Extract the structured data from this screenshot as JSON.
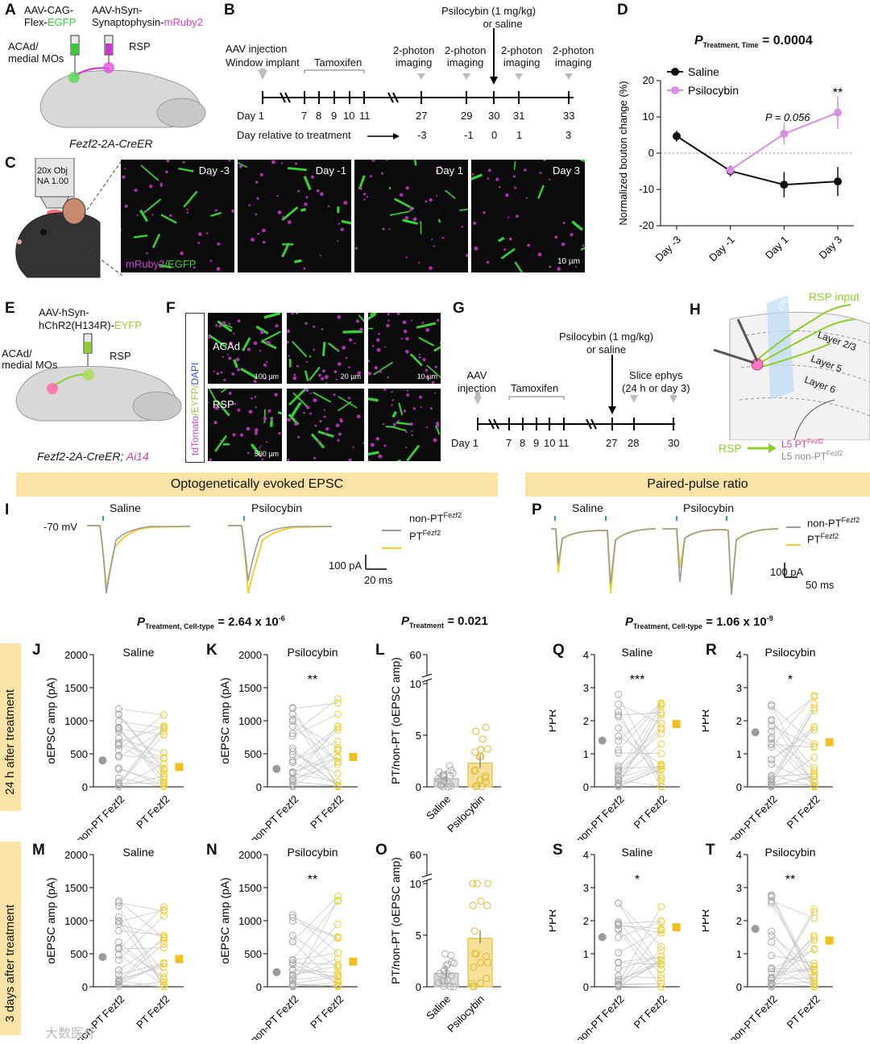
{
  "panels": {
    "A": "A",
    "B": "B",
    "C": "C",
    "D": "D",
    "E": "E",
    "F": "F",
    "G": "G",
    "H": "H",
    "I": "I",
    "J": "J",
    "K": "K",
    "L": "L",
    "M": "M",
    "N": "N",
    "O": "O",
    "P": "P",
    "Q": "Q",
    "R": "R",
    "S": "S",
    "T": "T"
  },
  "A": {
    "vec1_l1": "AAV-CAG-",
    "vec1_l2a": "Flex-",
    "vec1_l2b": "EGFP",
    "vec2_l1": "AAV-hSyn-",
    "vec2_l2a": "Synaptophysin-",
    "vec2_l2b": "mRuby2",
    "region1_l1": "ACAd/",
    "region1_l2": "medial MOs",
    "region2": "RSP",
    "mouse": "Fezf2-2A-CreER"
  },
  "B": {
    "inj_l1": "AAV injection",
    "inj_l2": "Window implant",
    "tam": "Tamoxifen",
    "p1_l1": "2-photon",
    "p1_l2": "imaging",
    "p2_l1": "2-photon",
    "p2_l2": "imaging",
    "p3_l1": "2-photon",
    "p3_l2": "imaging",
    "p4_l1": "2-photon",
    "p4_l2": "imaging",
    "drug_l1": "Psilocybin (1 mg/kg)",
    "drug_l2": "or saline",
    "day": "Day",
    "days": [
      "1",
      "7",
      "8",
      "9",
      "10",
      "11",
      "27",
      "29",
      "30",
      "31",
      "33"
    ],
    "rel_label": "Day relative to treatment",
    "rel": [
      "-3",
      "-1",
      "0",
      "1",
      "3"
    ]
  },
  "C": {
    "obj_l1": "20x Obj",
    "obj_l2": "NA 1.00",
    "tiles": [
      "Day -3",
      "Day -1",
      "Day 1",
      "Day 3"
    ],
    "legend_a": "mRuby2",
    "legend_b": "/EGFP",
    "scale": "10 µm"
  },
  "D": {
    "stat_p": "P",
    "stat_sub": "Treatment, Time",
    "stat_val": "= 0.0004",
    "legend": [
      "Saline",
      "Psilocybin"
    ],
    "ylabel": "Normalized bouton change (%)",
    "yticks": [
      "20",
      "10",
      "0",
      "-10",
      "-20"
    ],
    "xticks": [
      "Day -3",
      "Day -1",
      "Day 1",
      "Day 3"
    ],
    "annot": "P = 0.056",
    "stars": "**",
    "colors": {
      "saline": "#111111",
      "psilocybin": "#d98ee6"
    },
    "chart_data": {
      "type": "line",
      "categories": [
        "Day -3",
        "Day -1",
        "Day 1",
        "Day 3"
      ],
      "ylim": [
        -20,
        20
      ],
      "series": [
        {
          "name": "Saline",
          "values": [
            4.7,
            -4.9,
            -8.7,
            -7.8
          ],
          "err": [
            1.5,
            1.5,
            3.5,
            4.0
          ]
        },
        {
          "name": "Psilocybin",
          "values": [
            null,
            -4.6,
            5.3,
            11.2
          ],
          "err": [
            null,
            1.0,
            3.0,
            4.5
          ]
        }
      ]
    }
  },
  "E": {
    "vec_l1": "AAV-hSyn-",
    "vec_l2a": "hChR2(H134R)-",
    "vec_l2b": "EYFP",
    "region1_l1": "ACAd/",
    "region1_l2": "medial MOs",
    "region2": "RSP",
    "mouse_a": "Fezf2-2A-CreER; ",
    "mouse_b": "Ai14"
  },
  "F": {
    "side_a": "tdTomato",
    "side_b": "/EYFP/",
    "side_c": "DAPI",
    "acad": "ACAd",
    "rsp": "RSP",
    "s1": "100 µm",
    "s2": "20 µm",
    "s3": "10 µm",
    "s4": "500 µm"
  },
  "G": {
    "drug_l1": "Psilocybin (1 mg/kg)",
    "drug_l2": "or saline",
    "aav_l1": "AAV",
    "aav_l2": "injection",
    "tam": "Tamoxifen",
    "ephys_l1": "Slice ephys",
    "ephys_l2": "(24 h or day 3)",
    "day": "Day",
    "days": [
      "1",
      "7",
      "8",
      "9",
      "10",
      "11",
      "27",
      "28",
      "30"
    ]
  },
  "H": {
    "wavelength": "470 nm",
    "input": "RSP input",
    "layers": [
      "Layer 2/3",
      "Layer 5",
      "Layer 6"
    ],
    "rsp": "RSP",
    "target_a": "L5 PT",
    "target_sup": "Fezf2",
    "target_b": "L5 non-PT",
    "target_b_sup": "Fezf2"
  },
  "I": {
    "banner": "Optogenetically evoked EPSC",
    "saline": "Saline",
    "psilocybin": "Psilocybin",
    "vm": "-70 mV",
    "leg1": "non-PT",
    "leg1_sup": "Fezf2",
    "leg2": "PT",
    "leg2_sup": "Fezf2",
    "sb1": "100 pA",
    "sb2": "20 ms",
    "colors": {
      "nonpt": "#9a9a9a",
      "pt": "#f0d030"
    }
  },
  "P": {
    "banner": "Paired-pulse ratio",
    "saline": "Saline",
    "psilocybin": "Psilocybin",
    "leg1": "non-PT",
    "leg1_sup": "Fezf2",
    "leg2": "PT",
    "leg2_sup": "Fezf2",
    "sb1": "100 pA",
    "sb2": "50 ms"
  },
  "stats": {
    "s1_p": "P",
    "s1_sub": "Treatment, Cell-type",
    "s1_val": "= 2.64 x 10",
    "s1_exp": "-6",
    "s2_p": "P",
    "s2_sub": "Treatment",
    "s2_val": "= 0.021",
    "s3_p": "P",
    "s3_sub": "Treatment, Cell-type",
    "s3_val": "= 1.06 x 10",
    "s3_exp": "-9"
  },
  "rows": {
    "r1": "24 h after treatment",
    "r2": "3 days  after treatment"
  },
  "scatter": {
    "J": {
      "title": "Saline",
      "ylabel": "oEPSC amp (pA)",
      "stars": "",
      "yticks": [
        "2000",
        "1500",
        "1000",
        "500",
        "0"
      ],
      "x1": "non-PT",
      "x2": "PT",
      "sup": "Fezf2",
      "chart_data": {
        "type": "scatter",
        "ylim": [
          0,
          2000
        ],
        "categories": [
          "non-PT Fezf2",
          "PT Fezf2"
        ],
        "values": [
          400,
          300
        ]
      }
    },
    "K": {
      "title": "Psilocybin",
      "ylabel": "oEPSC amp (pA)",
      "stars": "**",
      "yticks": [
        "2000",
        "1500",
        "1000",
        "500",
        "0"
      ],
      "x1": "non-PT",
      "x2": "PT",
      "sup": "Fezf2",
      "chart_data": {
        "type": "scatter",
        "ylim": [
          0,
          2000
        ],
        "categories": [
          "non-PT Fezf2",
          "PT Fezf2"
        ],
        "values": [
          270,
          450
        ]
      }
    },
    "M": {
      "title": "Saline",
      "ylabel": "oEPSC amp (pA)",
      "stars": "",
      "yticks": [
        "2000",
        "1500",
        "1000",
        "500",
        "0"
      ],
      "x1": "non-PT",
      "x2": "PT",
      "sup": "Fezf2",
      "chart_data": {
        "type": "scatter",
        "ylim": [
          0,
          2000
        ],
        "categories": [
          "non-PT Fezf2",
          "PT Fezf2"
        ],
        "values": [
          450,
          420
        ]
      }
    },
    "N": {
      "title": "Psilocybin",
      "ylabel": "oEPSC amp (pA)",
      "stars": "**",
      "yticks": [
        "2000",
        "1500",
        "1000",
        "500",
        "0"
      ],
      "x1": "non-PT",
      "x2": "PT",
      "sup": "Fezf2",
      "chart_data": {
        "type": "scatter",
        "ylim": [
          0,
          2000
        ],
        "categories": [
          "non-PT Fezf2",
          "PT Fezf2"
        ],
        "values": [
          220,
          380
        ]
      }
    },
    "Q": {
      "title": "Saline",
      "ylabel": "PPR",
      "stars": "***",
      "yticks": [
        "4",
        "3",
        "2",
        "1",
        "0"
      ],
      "x1": "non-PT",
      "x2": "PT",
      "sup": "Fezf2",
      "chart_data": {
        "type": "scatter",
        "ylim": [
          0,
          4
        ],
        "categories": [
          "non-PT Fezf2",
          "PT Fezf2"
        ],
        "values": [
          1.4,
          1.9
        ]
      }
    },
    "R": {
      "title": "Psilocybin",
      "ylabel": "PPR",
      "stars": "*",
      "yticks": [
        "4",
        "3",
        "2",
        "1",
        "0"
      ],
      "x1": "non-PT",
      "x2": "PT",
      "sup": "Fezf2",
      "chart_data": {
        "type": "scatter",
        "ylim": [
          0,
          4
        ],
        "categories": [
          "non-PT Fezf2",
          "PT Fezf2"
        ],
        "values": [
          1.65,
          1.35
        ]
      }
    },
    "S": {
      "title": "Saline",
      "ylabel": "PPR",
      "stars": "*",
      "yticks": [
        "4",
        "3",
        "2",
        "1",
        "0"
      ],
      "x1": "non-PT",
      "x2": "PT",
      "sup": "Fezf2",
      "chart_data": {
        "type": "scatter",
        "ylim": [
          0,
          4
        ],
        "categories": [
          "non-PT Fezf2",
          "PT Fezf2"
        ],
        "values": [
          1.5,
          1.8
        ]
      }
    },
    "T": {
      "title": "Psilocybin",
      "ylabel": "PPR",
      "stars": "**",
      "yticks": [
        "4",
        "3",
        "2",
        "1",
        "0"
      ],
      "x1": "non-PT",
      "x2": "PT",
      "sup": "Fezf2",
      "chart_data": {
        "type": "scatter",
        "ylim": [
          0,
          4
        ],
        "categories": [
          "non-PT Fezf2",
          "PT Fezf2"
        ],
        "values": [
          1.75,
          1.4
        ]
      }
    }
  },
  "bars": {
    "L": {
      "ylabel": "PT/non-PT (oEPSC amp)",
      "yticks": [
        "60",
        "10",
        "5",
        "0"
      ],
      "cats": [
        "Saline",
        "Psilocybin"
      ],
      "chart_data": {
        "type": "bar",
        "categories": [
          "Saline",
          "Psilocybin"
        ],
        "values": [
          0.8,
          2.3
        ]
      }
    },
    "O": {
      "ylabel": "PT/non-PT (oEPSC amp)",
      "yticks": [
        "60",
        "10",
        "5",
        "0"
      ],
      "cats": [
        "Saline",
        "Psilocybin"
      ],
      "chart_data": {
        "type": "bar",
        "categories": [
          "Saline",
          "Psilocybin"
        ],
        "values": [
          1.3,
          4.7
        ]
      }
    }
  },
  "watermark": "大数医疗"
}
